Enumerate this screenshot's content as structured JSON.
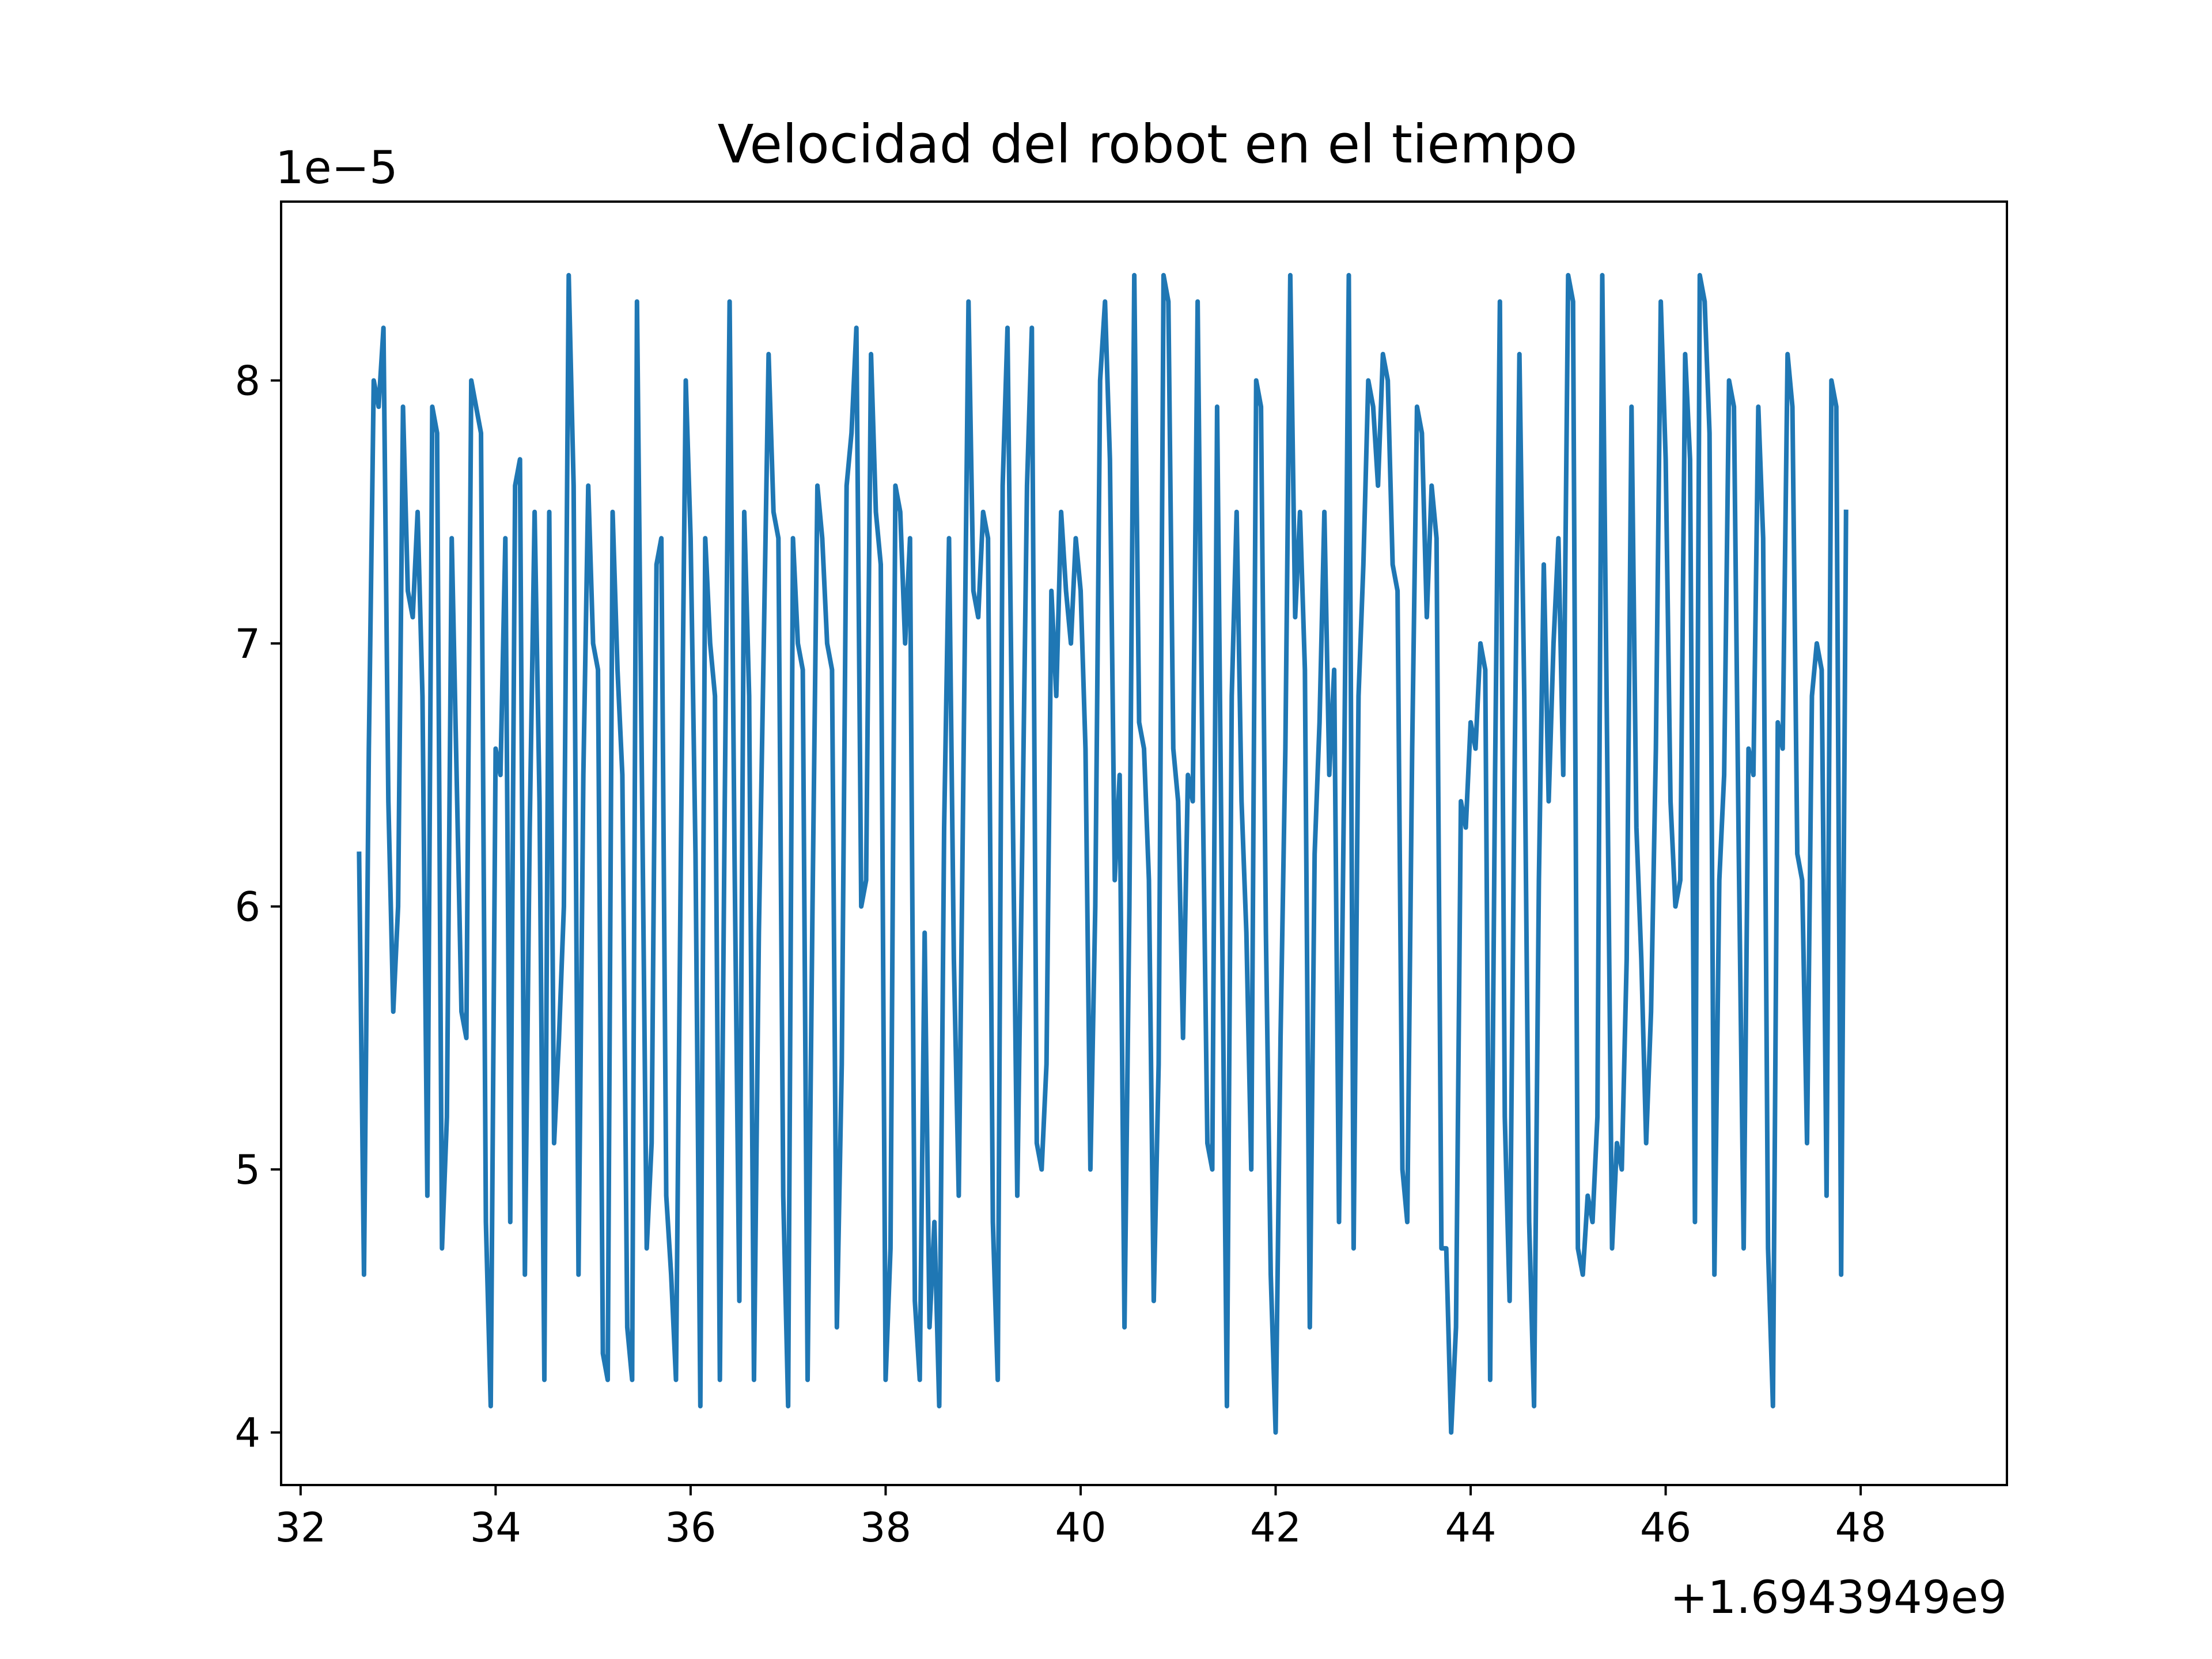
{
  "chart_data": {
    "type": "line",
    "title": "Velocidad del robot en el tiempo",
    "xlabel": "",
    "ylabel": "",
    "x_offset_label": "+1.6943949e9",
    "y_scale_label": "1e−5",
    "xlim": [
      31.8,
      49.5
    ],
    "ylim": [
      3.8,
      8.68
    ],
    "x_ticks": [
      32,
      34,
      36,
      38,
      40,
      42,
      44,
      46,
      48
    ],
    "y_ticks": [
      4,
      5,
      6,
      7,
      8
    ],
    "grid": false,
    "legend": "none",
    "series": [
      {
        "color": "#1f77b4",
        "x_start": 32.6,
        "x_step": 0.05,
        "values": [
          6.2,
          4.6,
          6.6,
          8.0,
          7.9,
          8.2,
          6.4,
          5.6,
          6.0,
          7.9,
          7.2,
          7.1,
          7.5,
          6.8,
          4.9,
          7.9,
          7.8,
          4.7,
          5.2,
          7.4,
          6.5,
          5.6,
          5.5,
          8.0,
          7.9,
          7.8,
          4.8,
          4.1,
          6.6,
          6.5,
          7.4,
          4.8,
          7.6,
          7.7,
          4.6,
          6.3,
          7.5,
          6.4,
          4.2,
          7.5,
          5.1,
          5.5,
          6.0,
          8.4,
          7.6,
          4.6,
          6.5,
          7.6,
          7.0,
          6.9,
          4.3,
          4.2,
          7.5,
          6.9,
          6.5,
          4.4,
          4.2,
          8.3,
          6.5,
          4.7,
          5.1,
          7.3,
          7.4,
          4.9,
          4.6,
          4.2,
          6.2,
          8.0,
          7.4,
          6.2,
          4.1,
          7.4,
          7.0,
          6.8,
          4.2,
          6.4,
          8.3,
          6.2,
          4.5,
          7.5,
          6.8,
          4.2,
          5.9,
          7.0,
          8.1,
          7.5,
          7.4,
          4.9,
          4.1,
          7.4,
          7.0,
          6.9,
          4.2,
          6.0,
          7.6,
          7.4,
          7.0,
          6.9,
          4.4,
          5.4,
          7.6,
          7.8,
          8.2,
          6.0,
          6.1,
          8.1,
          7.5,
          7.3,
          4.2,
          4.7,
          7.6,
          7.5,
          7.0,
          7.4,
          4.5,
          4.2,
          5.9,
          4.4,
          4.8,
          4.1,
          6.3,
          7.4,
          5.8,
          4.9,
          6.6,
          8.3,
          7.2,
          7.1,
          7.5,
          7.4,
          4.8,
          4.2,
          7.6,
          8.2,
          6.5,
          4.9,
          6.2,
          7.6,
          8.2,
          5.1,
          5.0,
          5.4,
          7.2,
          6.8,
          7.5,
          7.2,
          7.0,
          7.4,
          7.2,
          6.6,
          5.0,
          6.0,
          8.0,
          8.3,
          7.7,
          6.1,
          6.5,
          4.4,
          6.0,
          8.4,
          6.7,
          6.6,
          6.1,
          4.5,
          5.4,
          8.4,
          8.3,
          6.6,
          6.4,
          5.5,
          6.5,
          6.4,
          8.3,
          6.5,
          5.1,
          5.0,
          7.9,
          6.0,
          4.1,
          6.8,
          7.5,
          6.4,
          5.9,
          5.0,
          8.0,
          7.9,
          5.9,
          4.6,
          4.0,
          5.5,
          6.6,
          8.4,
          7.1,
          7.5,
          6.9,
          4.4,
          6.2,
          6.7,
          7.5,
          6.5,
          6.9,
          4.8,
          6.4,
          8.4,
          4.7,
          6.8,
          7.3,
          8.0,
          7.9,
          7.6,
          8.1,
          8.0,
          7.3,
          7.2,
          5.0,
          4.8,
          6.6,
          7.9,
          7.8,
          7.1,
          7.6,
          7.4,
          4.7,
          4.7,
          4.0,
          4.4,
          6.4,
          6.3,
          6.7,
          6.6,
          7.0,
          6.9,
          4.2,
          6.5,
          8.3,
          5.2,
          4.5,
          6.5,
          8.1,
          6.8,
          4.8,
          4.1,
          6.1,
          7.3,
          6.4,
          7.0,
          7.4,
          6.5,
          8.4,
          8.3,
          4.7,
          4.6,
          4.9,
          4.8,
          5.2,
          8.4,
          6.6,
          4.7,
          5.1,
          5.0,
          5.8,
          7.9,
          6.3,
          5.8,
          5.1,
          5.6,
          6.6,
          8.3,
          7.7,
          6.4,
          6.0,
          6.1,
          8.1,
          7.7,
          4.8,
          8.4,
          8.3,
          7.8,
          4.6,
          6.1,
          6.5,
          8.0,
          7.9,
          6.2,
          4.7,
          6.6,
          6.5,
          7.9,
          7.4,
          4.7,
          4.1,
          6.7,
          6.6,
          8.1,
          7.9,
          6.2,
          6.1,
          5.1,
          6.8,
          7.0,
          6.9,
          4.9,
          8.0,
          7.9,
          4.6,
          7.5
        ]
      }
    ]
  }
}
